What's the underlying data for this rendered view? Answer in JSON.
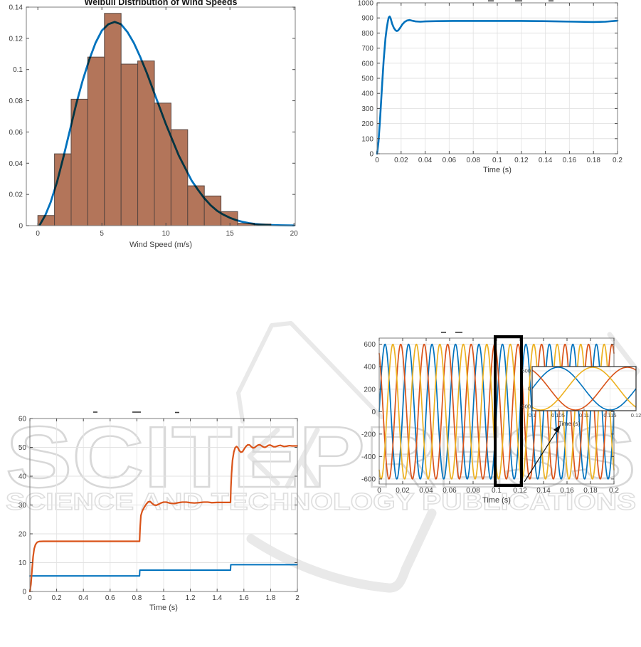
{
  "page": {
    "background": "#ffffff"
  },
  "watermark": {
    "title": "SCITEPRESS",
    "subtitle": "SCIENCE AND TECHNOLOGY PUBLICATIONS",
    "title_outline_color": "#d8d8d8",
    "subtitle_outline_color": "#dedede",
    "logo_color": "#e9e9e9"
  },
  "chart_data": [
    {
      "id": "weibull",
      "type": "bar",
      "title": "Weibull Distribution of Wind Speeds",
      "xlabel": "Wind Speed (m/s)",
      "ylabel": "",
      "xlim": [
        -0.9,
        20.1
      ],
      "ylim": [
        0,
        0.14
      ],
      "grid": false,
      "xticks": {
        "v": [
          0,
          5,
          10,
          15,
          20
        ],
        "l": [
          "0",
          "5",
          "10",
          "15",
          "20"
        ]
      },
      "yticks": {
        "v": [
          0,
          0.02,
          0.04,
          0.06,
          0.08,
          0.1,
          0.12,
          0.14
        ],
        "l": [
          "0",
          "0.02",
          "0.04",
          "0.06",
          "0.08",
          "0.1",
          "0.12",
          "0.14"
        ]
      },
      "bars": {
        "start": 0,
        "width": 1.3,
        "values": [
          0.0065,
          0.046,
          0.081,
          0.108,
          0.136,
          0.1035,
          0.1055,
          0.0785,
          0.0615,
          0.0255,
          0.019,
          0.009,
          0.0015,
          0.001
        ],
        "fill": "#B3755A",
        "edge": "#584640"
      },
      "series": [
        {
          "name": "weibull-fit-curve",
          "color": "#0072BD",
          "width": 2.8,
          "blend": true,
          "points": [
            [
              0.15,
              0.0004
            ],
            [
              0.6,
              0.007
            ],
            [
              1,
              0.015
            ],
            [
              1.5,
              0.028
            ],
            [
              2,
              0.044
            ],
            [
              2.5,
              0.061
            ],
            [
              3,
              0.078
            ],
            [
              3.5,
              0.093
            ],
            [
              4,
              0.106
            ],
            [
              4.5,
              0.117
            ],
            [
              5,
              0.125
            ],
            [
              5.5,
              0.129
            ],
            [
              6,
              0.1305
            ],
            [
              6.5,
              0.129
            ],
            [
              7,
              0.124
            ],
            [
              7.5,
              0.117
            ],
            [
              8,
              0.108
            ],
            [
              8.5,
              0.098
            ],
            [
              9,
              0.087
            ],
            [
              9.5,
              0.076
            ],
            [
              10,
              0.065
            ],
            [
              10.5,
              0.055
            ],
            [
              11,
              0.045
            ],
            [
              11.5,
              0.037
            ],
            [
              12,
              0.029
            ],
            [
              12.5,
              0.023
            ],
            [
              13,
              0.0175
            ],
            [
              13.5,
              0.013
            ],
            [
              14,
              0.0095
            ],
            [
              14.5,
              0.007
            ],
            [
              15,
              0.005
            ],
            [
              15.5,
              0.0035
            ],
            [
              16,
              0.0024
            ],
            [
              16.5,
              0.0016
            ],
            [
              17,
              0.001
            ],
            [
              17.5,
              0.0007
            ],
            [
              18,
              0.0004
            ],
            [
              19,
              0.0002
            ],
            [
              20,
              0.0001
            ]
          ]
        }
      ]
    },
    {
      "id": "response",
      "type": "line",
      "title": "",
      "xlabel": "Time (s)",
      "xlim": [
        0,
        0.2
      ],
      "ylim": [
        0,
        1000
      ],
      "grid": true,
      "xticks": {
        "v": [
          0,
          0.02,
          0.04,
          0.06,
          0.08,
          0.1,
          0.12,
          0.14,
          0.16,
          0.18,
          0.2
        ],
        "l": [
          "0",
          "0.02",
          "0.04",
          "0.06",
          "0.08",
          "0.1",
          "0.12",
          "0.14",
          "0.16",
          "0.18",
          "0.2"
        ]
      },
      "yticks": {
        "v": [
          0,
          100,
          200,
          300,
          400,
          500,
          600,
          700,
          800,
          900,
          1000
        ],
        "l": [
          "0",
          "100",
          "200",
          "300",
          "400",
          "500",
          "600",
          "700",
          "800",
          "900",
          "1000"
        ]
      },
      "series": [
        {
          "name": "response-curve",
          "color": "#0072BD",
          "width": 2.6,
          "points": [
            [
              0,
              0
            ],
            [
              0.0012,
              80
            ],
            [
              0.0025,
              230
            ],
            [
              0.004,
              430
            ],
            [
              0.0055,
              620
            ],
            [
              0.007,
              765
            ],
            [
              0.008,
              830
            ],
            [
              0.009,
              878
            ],
            [
              0.0097,
              903
            ],
            [
              0.0105,
              910
            ],
            [
              0.0113,
              897
            ],
            [
              0.0125,
              862
            ],
            [
              0.014,
              833
            ],
            [
              0.0155,
              817
            ],
            [
              0.0165,
              813
            ],
            [
              0.0175,
              817
            ],
            [
              0.019,
              832
            ],
            [
              0.021,
              857
            ],
            [
              0.023,
              874
            ],
            [
              0.025,
              883
            ],
            [
              0.027,
              886
            ],
            [
              0.029,
              882
            ],
            [
              0.032,
              877
            ],
            [
              0.036,
              875
            ],
            [
              0.04,
              877
            ],
            [
              0.05,
              879
            ],
            [
              0.065,
              880
            ],
            [
              0.08,
              880
            ],
            [
              0.1,
              880
            ],
            [
              0.12,
              880
            ],
            [
              0.135,
              879
            ],
            [
              0.15,
              877
            ],
            [
              0.165,
              875
            ],
            [
              0.18,
              873
            ],
            [
              0.19,
              875
            ],
            [
              0.2,
              882
            ]
          ]
        }
      ]
    },
    {
      "id": "steps",
      "type": "line",
      "title": "",
      "xlabel": "Time (s)",
      "xlim": [
        0,
        2
      ],
      "ylim": [
        0,
        60
      ],
      "grid": true,
      "xticks": {
        "v": [
          0,
          0.2,
          0.4,
          0.6,
          0.8,
          1,
          1.2,
          1.4,
          1.6,
          1.8,
          2
        ],
        "l": [
          "0",
          "0.2",
          "0.4",
          "0.6",
          "0.8",
          "1",
          "1.2",
          "1.4",
          "1.6",
          "1.8",
          "2"
        ]
      },
      "yticks": {
        "v": [
          0,
          10,
          20,
          30,
          40,
          50,
          60
        ],
        "l": [
          "0",
          "10",
          "20",
          "30",
          "40",
          "50",
          "60"
        ]
      },
      "series": [
        {
          "name": "step-reference-blue",
          "color": "#0072BD",
          "width": 2,
          "points": [
            [
              0,
              5.4
            ],
            [
              0.82,
              5.4
            ],
            [
              0.822,
              7.4
            ],
            [
              1.5,
              7.4
            ],
            [
              1.502,
              9.3
            ],
            [
              2,
              9.3
            ]
          ]
        },
        {
          "name": "step-response-orange",
          "color": "#D95319",
          "width": 2.2,
          "points": [
            [
              0,
              0
            ],
            [
              0.008,
              2.5
            ],
            [
              0.016,
              7.5
            ],
            [
              0.024,
              12
            ],
            [
              0.032,
              14.8
            ],
            [
              0.042,
              16.3
            ],
            [
              0.055,
              17.1
            ],
            [
              0.07,
              17.35
            ],
            [
              0.1,
              17.4
            ],
            [
              0.82,
              17.4
            ],
            [
              0.824,
              22
            ],
            [
              0.83,
              26.3
            ],
            [
              0.84,
              27.9
            ],
            [
              0.855,
              29.2
            ],
            [
              0.87,
              30.3
            ],
            [
              0.885,
              31.1
            ],
            [
              0.9,
              31.2
            ],
            [
              0.915,
              30.5
            ],
            [
              0.93,
              30
            ],
            [
              0.945,
              29.9
            ],
            [
              0.96,
              30.2
            ],
            [
              0.98,
              30.7
            ],
            [
              1,
              31
            ],
            [
              1.02,
              31
            ],
            [
              1.05,
              30.6
            ],
            [
              1.08,
              30.5
            ],
            [
              1.11,
              30.8
            ],
            [
              1.14,
              31
            ],
            [
              1.17,
              31
            ],
            [
              1.2,
              30.8
            ],
            [
              1.23,
              30.7
            ],
            [
              1.26,
              30.8
            ],
            [
              1.3,
              31
            ],
            [
              1.33,
              31
            ],
            [
              1.36,
              30.8
            ],
            [
              1.4,
              30.9
            ],
            [
              1.44,
              30.9
            ],
            [
              1.47,
              30.9
            ],
            [
              1.5,
              30.9
            ],
            [
              1.503,
              36
            ],
            [
              1.508,
              41
            ],
            [
              1.515,
              45.5
            ],
            [
              1.525,
              48.4
            ],
            [
              1.535,
              49.9
            ],
            [
              1.545,
              50.3
            ],
            [
              1.555,
              49.9
            ],
            [
              1.565,
              48.9
            ],
            [
              1.578,
              48.3
            ],
            [
              1.59,
              48.5
            ],
            [
              1.603,
              49.5
            ],
            [
              1.617,
              50.4
            ],
            [
              1.63,
              50.9
            ],
            [
              1.643,
              50.8
            ],
            [
              1.656,
              50.2
            ],
            [
              1.668,
              49.8
            ],
            [
              1.68,
              49.9
            ],
            [
              1.693,
              50.4
            ],
            [
              1.706,
              50.8
            ],
            [
              1.72,
              50.9
            ],
            [
              1.733,
              50.5
            ],
            [
              1.746,
              50.1
            ],
            [
              1.758,
              50
            ],
            [
              1.77,
              50.3
            ],
            [
              1.783,
              50.7
            ],
            [
              1.796,
              50.8
            ],
            [
              1.81,
              50.5
            ],
            [
              1.823,
              50.2
            ],
            [
              1.835,
              50.2
            ],
            [
              1.848,
              50.4
            ],
            [
              1.86,
              50.6
            ],
            [
              1.873,
              50.7
            ],
            [
              1.886,
              50.5
            ],
            [
              1.9,
              50.3
            ],
            [
              1.92,
              50.4
            ],
            [
              1.94,
              50.6
            ],
            [
              1.96,
              50.5
            ],
            [
              1.98,
              50.5
            ],
            [
              2,
              50.5
            ]
          ]
        }
      ]
    },
    {
      "id": "threephase",
      "type": "line",
      "title": "",
      "xlabel": "Time (s)",
      "xlim": [
        0,
        0.2
      ],
      "ylim": [
        -645,
        655
      ],
      "grid": true,
      "xticks": {
        "v": [
          0,
          0.02,
          0.04,
          0.06,
          0.08,
          0.1,
          0.12,
          0.14,
          0.16,
          0.18,
          0.2
        ],
        "l": [
          "0",
          "0.02",
          "0.04",
          "0.06",
          "0.08",
          "0.1",
          "0.12",
          "0.14",
          "0.16",
          "0.18",
          "0.2"
        ]
      },
      "yticks": {
        "v": [
          -600,
          -400,
          -200,
          0,
          200,
          400,
          600
        ],
        "l": [
          "-600",
          "-400",
          "-200",
          "0",
          "200",
          "400",
          "600"
        ]
      },
      "series": [
        {
          "name": "phase-a",
          "color": "#0072BD",
          "width": 1.7,
          "generator": "sine",
          "amplitude": 600,
          "frequency_hz": 50,
          "phase_deg": 0,
          "sample_step": 0.0002
        },
        {
          "name": "phase-b",
          "color": "#D95319",
          "width": 1.7,
          "generator": "sine",
          "amplitude": 600,
          "frequency_hz": 50,
          "phase_deg": 120,
          "sample_step": 0.0002
        },
        {
          "name": "phase-c",
          "color": "#EDB120",
          "width": 1.7,
          "generator": "sine",
          "amplitude": 600,
          "frequency_hz": 50,
          "phase_deg": -120,
          "sample_step": 0.0002
        }
      ],
      "highlight": {
        "x0": 0.1,
        "x1": 0.12,
        "color": "#000000",
        "stroke_width": 4
      },
      "inset": {
        "xlabel": "Time (s)",
        "xlim": [
          0.1,
          0.12
        ],
        "ylim": [
          -620,
          620
        ],
        "xticks": {
          "v": [
            0.1,
            0.105,
            0.11,
            0.115,
            0.12
          ],
          "l": [
            "0.1",
            "0.105",
            "0.11",
            "0.115",
            "0.12"
          ]
        },
        "yticks": {
          "v": [
            500,
            0,
            -500
          ],
          "l": [
            "500",
            "0",
            "-500"
          ]
        },
        "background": "#ffffff",
        "sample_step": 0.0001
      }
    }
  ]
}
